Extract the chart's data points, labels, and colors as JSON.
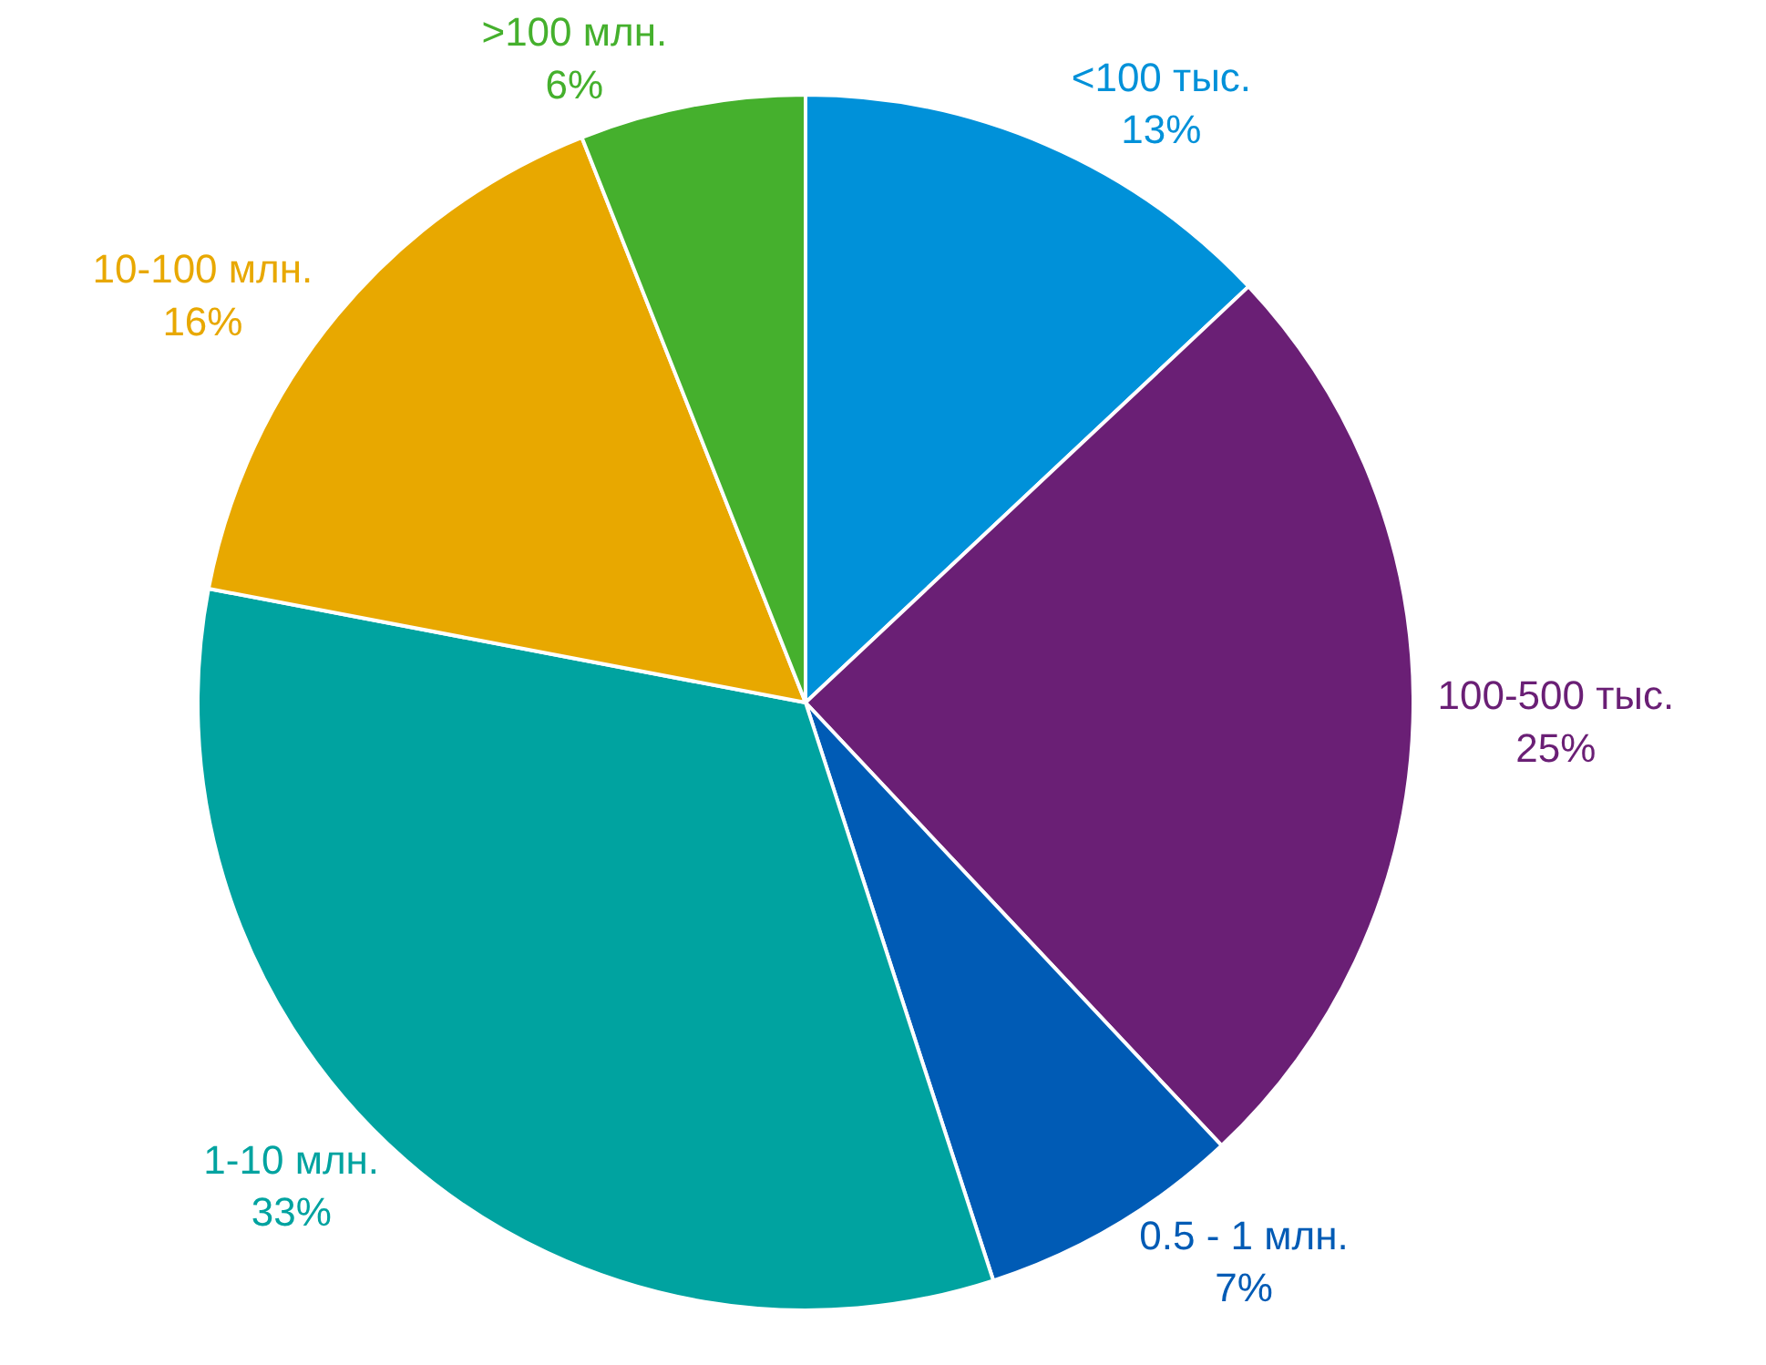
{
  "chart_data": {
    "type": "pie",
    "categories": [
      "<100 тыс.",
      "100-500 тыс.",
      "0.5 - 1 млн.",
      "1-10 млн.",
      "10-100 млн.",
      ">100 млн."
    ],
    "values": [
      13,
      25,
      7,
      33,
      16,
      6
    ],
    "value_labels": [
      "13%",
      "25%",
      "7%",
      "33%",
      "16%",
      "6%"
    ],
    "colors": [
      "#0091d9",
      "#6a1f75",
      "#005bb5",
      "#00a3a0",
      "#e8a800",
      "#45b02d"
    ],
    "legend": false
  }
}
